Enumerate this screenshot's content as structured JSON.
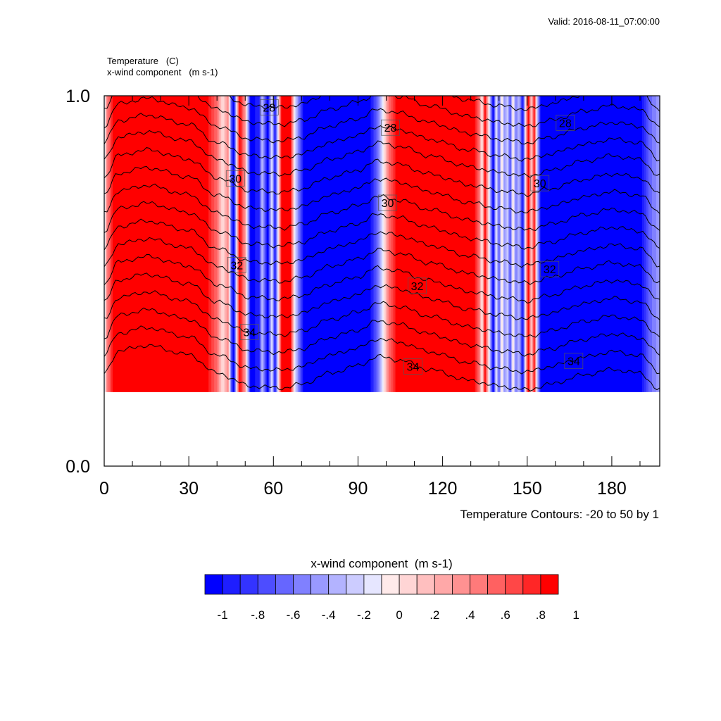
{
  "valid_label": "Valid: 2016-08-11_07:00:00",
  "chart_data": {
    "type": "heatmap",
    "left_titles": [
      "Temperature   (C)",
      "x-wind component   (m s-1)"
    ],
    "xticks": [
      "0",
      "30",
      "60",
      "90",
      "120",
      "150",
      "180"
    ],
    "xlim": [
      0,
      197
    ],
    "yticks": [
      "1.0",
      "0.0"
    ],
    "ylim": [
      0,
      1
    ],
    "data_top": 1.0,
    "data_bottom": 0.2,
    "contour_note": "Temperature Contours: -20 to 50 by 1",
    "contour_interval": 1,
    "wind_columns": [
      {
        "x": 0,
        "u": -0.1
      },
      {
        "x": 1,
        "u": 0.5
      },
      {
        "x": 3,
        "u": 0.9
      },
      {
        "x": 6,
        "u": 1.0
      },
      {
        "x": 36,
        "u": 1.0
      },
      {
        "x": 40,
        "u": 0.6
      },
      {
        "x": 42,
        "u": 0.1
      },
      {
        "x": 44,
        "u": 0.5
      },
      {
        "x": 45,
        "u": -0.6
      },
      {
        "x": 46,
        "u": -1.0
      },
      {
        "x": 47,
        "u": 0.1
      },
      {
        "x": 48,
        "u": 1.0
      },
      {
        "x": 50,
        "u": 0.4
      },
      {
        "x": 52,
        "u": -1.0
      },
      {
        "x": 55,
        "u": -0.8
      },
      {
        "x": 56,
        "u": -0.2
      },
      {
        "x": 58,
        "u": -1.0
      },
      {
        "x": 59.5,
        "u": 0.0
      },
      {
        "x": 60.5,
        "u": -0.9
      },
      {
        "x": 62,
        "u": 0.2
      },
      {
        "x": 63,
        "u": 1.0
      },
      {
        "x": 66,
        "u": 1.0
      },
      {
        "x": 67.5,
        "u": 0.0
      },
      {
        "x": 69,
        "u": -0.5
      },
      {
        "x": 71,
        "u": -1.0
      },
      {
        "x": 94,
        "u": -1.0
      },
      {
        "x": 97,
        "u": -0.5
      },
      {
        "x": 99,
        "u": 0.0
      },
      {
        "x": 101,
        "u": 0.6
      },
      {
        "x": 104,
        "u": 1.0
      },
      {
        "x": 131,
        "u": 1.0
      },
      {
        "x": 133,
        "u": 0.6
      },
      {
        "x": 134,
        "u": 0.0
      },
      {
        "x": 135,
        "u": 1.0
      },
      {
        "x": 136.5,
        "u": 0.0
      },
      {
        "x": 138,
        "u": -1.0
      },
      {
        "x": 139,
        "u": 0.0
      },
      {
        "x": 140,
        "u": -0.6
      },
      {
        "x": 141,
        "u": 0.1
      },
      {
        "x": 142,
        "u": -0.4
      },
      {
        "x": 143,
        "u": -0.1
      },
      {
        "x": 144,
        "u": -0.7
      },
      {
        "x": 145,
        "u": 0.1
      },
      {
        "x": 146,
        "u": -0.5
      },
      {
        "x": 147,
        "u": -0.2
      },
      {
        "x": 148.5,
        "u": -0.9
      },
      {
        "x": 149.5,
        "u": 0.2
      },
      {
        "x": 150.5,
        "u": 1.0
      },
      {
        "x": 151.5,
        "u": 0.1
      },
      {
        "x": 152.5,
        "u": 1.0
      },
      {
        "x": 153.5,
        "u": -0.2
      },
      {
        "x": 155,
        "u": -1.0
      },
      {
        "x": 190,
        "u": -1.0
      },
      {
        "x": 193,
        "u": -0.6
      },
      {
        "x": 197,
        "u": -0.3
      }
    ],
    "temperature_profile": [
      {
        "x": 0,
        "dz": 0.0
      },
      {
        "x": 5,
        "dz": 0.06
      },
      {
        "x": 15,
        "dz": 0.075
      },
      {
        "x": 30,
        "dz": 0.05
      },
      {
        "x": 40,
        "dz": 0.0
      },
      {
        "x": 52,
        "dz": -0.035
      },
      {
        "x": 63,
        "dz": -0.04
      },
      {
        "x": 70,
        "dz": -0.03
      },
      {
        "x": 80,
        "dz": 0.0
      },
      {
        "x": 90,
        "dz": 0.02
      },
      {
        "x": 97,
        "dz": 0.045
      },
      {
        "x": 105,
        "dz": 0.035
      },
      {
        "x": 115,
        "dz": 0.01
      },
      {
        "x": 130,
        "dz": -0.02
      },
      {
        "x": 140,
        "dz": -0.035
      },
      {
        "x": 150,
        "dz": -0.045
      },
      {
        "x": 158,
        "dz": -0.03
      },
      {
        "x": 170,
        "dz": -0.005
      },
      {
        "x": 180,
        "dz": 0.01
      },
      {
        "x": 190,
        "dz": 0.0
      },
      {
        "x": 197,
        "dz": -0.045
      }
    ],
    "temperature_contours": [
      {
        "value": 27,
        "y": 1.008
      },
      {
        "value": 28,
        "y": 0.963
      },
      {
        "value": 29,
        "y": 0.918
      },
      {
        "value": 30,
        "y": 0.873
      },
      {
        "value": 31,
        "y": 0.828
      },
      {
        "value": 32,
        "y": 0.779
      },
      {
        "value": 33,
        "y": 0.731
      },
      {
        "value": 34,
        "y": 0.683
      },
      {
        "value": 35,
        "y": 0.635
      },
      {
        "value": 36,
        "y": 0.587
      },
      {
        "value": 37,
        "y": 0.539
      },
      {
        "value": 38,
        "y": 0.491
      },
      {
        "value": 39,
        "y": 0.443
      },
      {
        "value": 40,
        "y": 0.395
      },
      {
        "value": 41,
        "y": 0.347
      },
      {
        "value": 42,
        "y": 0.299
      },
      {
        "value": 43,
        "y": 0.251
      }
    ],
    "contour_labels": [
      {
        "text": "28",
        "x": 58.5,
        "y": 0.969
      },
      {
        "text": "28",
        "x": 101.5,
        "y": 0.914
      },
      {
        "text": "28",
        "x": 163.5,
        "y": 0.927
      },
      {
        "text": "30",
        "x": 46.5,
        "y": 0.777
      },
      {
        "text": "30",
        "x": 100.5,
        "y": 0.711
      },
      {
        "text": "30",
        "x": 154.5,
        "y": 0.764
      },
      {
        "text": "32",
        "x": 47,
        "y": 0.543
      },
      {
        "text": "32",
        "x": 111,
        "y": 0.487
      },
      {
        "text": "32",
        "x": 158,
        "y": 0.532
      },
      {
        "text": "34",
        "x": 51.5,
        "y": 0.362
      },
      {
        "text": "34",
        "x": 109.5,
        "y": 0.269
      },
      {
        "text": "34",
        "x": 166.5,
        "y": 0.284
      }
    ],
    "colorbar": {
      "title": "x-wind component  (m s-1)",
      "colors": [
        "#0000ff",
        "#1e1eff",
        "#3333ff",
        "#4d4dff",
        "#6666ff",
        "#8080ff",
        "#9999ff",
        "#b3b3ff",
        "#ccccff",
        "#e6e6ff",
        "#ffeaea",
        "#ffd5d5",
        "#ffbfbf",
        "#ffa8a8",
        "#ff9191",
        "#ff7a7a",
        "#ff6161",
        "#ff4747",
        "#ff2626",
        "#ff0000"
      ],
      "labels": [
        "-1",
        "-.8",
        "-.6",
        "-.4",
        "-.2",
        "0",
        ".2",
        ".4",
        ".6",
        ".8",
        "1"
      ]
    }
  }
}
